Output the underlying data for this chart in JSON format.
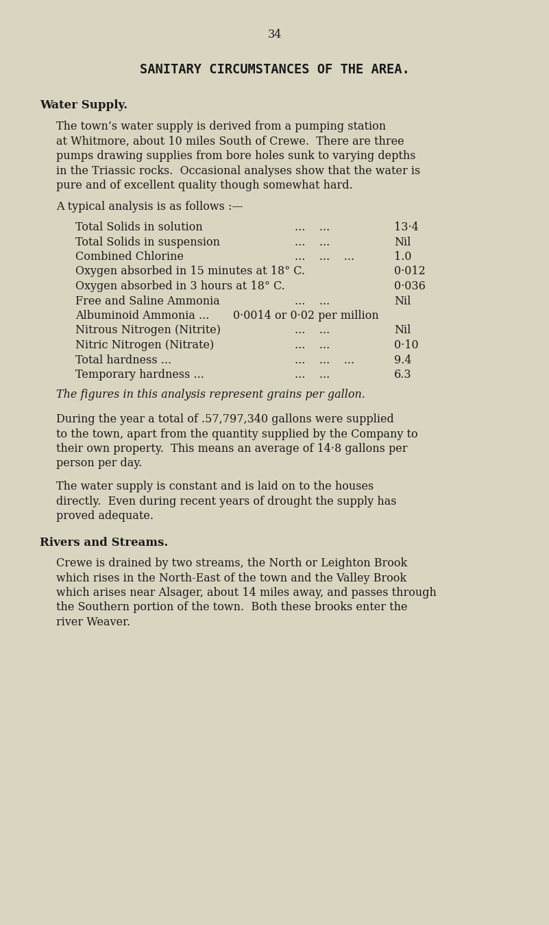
{
  "bg_color": "#d9d5c1",
  "text_color": "#1a1a1a",
  "page_number": "34",
  "title": "SANITARY CIRCUMSTANCES OF THE AREA.",
  "section1_header": "Water Supply.",
  "analysis_intro": "A typical analysis is as follows :—",
  "analysis_items": [
    {
      "label": "Total Solids in solution",
      "dots": "...    ...",
      "value": "13·4"
    },
    {
      "label": "Total Solids in suspension",
      "dots": "...    ...",
      "value": "Nil"
    },
    {
      "label": "Combined Chlorine",
      "dots": "...    ...    ...",
      "value": "1.0"
    },
    {
      "label": "Oxygen absorbed in 15 minutes at 18° C.",
      "dots": "",
      "value": "0·012"
    },
    {
      "label": "Oxygen absorbed in 3 hours at 18° C.",
      "dots": "",
      "value": "0·036"
    },
    {
      "label": "Free and Saline Ammonia",
      "dots": "...    ...",
      "value": "Nil"
    },
    {
      "label": "Albuminoid Ammonia ...",
      "dots": "",
      "value": "0·0014 or 0·02 per million",
      "special": true
    },
    {
      "label": "Nitrous Nitrogen (Nitrite)",
      "dots": "...    ...",
      "value": "Nil"
    },
    {
      "label": "Nitric Nitrogen (Nitrate)",
      "dots": "...    ...",
      "value": "0·10"
    },
    {
      "label": "Total hardness ...",
      "dots": "...    ...    ...",
      "value": "9.4"
    },
    {
      "label": "Temporary hardness ...",
      "dots": "...    ...",
      "value": "6.3"
    }
  ],
  "analysis_note": "The figures in this analysis represent grains per gallon.",
  "para1_lines": [
    "The town’s water supply is derived from a pumping station",
    "at Whitmore, about 10 miles South of Crewe.  There are three",
    "pumps drawing supplies from bore holes sunk to varying depths",
    "in the Triassic rocks.  Occasional analyses show that the water is",
    "pure and of excellent quality though somewhat hard."
  ],
  "para2_lines": [
    "During the year a total of .57,797,340 gallons were supplied",
    "to the town, apart from the quantity supplied by the Company to",
    "their own property.  This means an average of 14·8 gallons per",
    "person per day."
  ],
  "para3_lines": [
    "The water supply is constant and is laid on to the houses",
    "directly.  Even during recent years of drought the supply has",
    "proved adequate."
  ],
  "section2_header": "Rivers and Streams.",
  "para4_lines": [
    "Crewe is drained by two streams, the North or Leighton Brook",
    "which rises in the North-East of the town and the Valley Brook",
    "which arises near Alsager, about 14 miles away, and passes through",
    "the Southern portion of the town.  Both these brooks enter the",
    "river Weaver."
  ]
}
